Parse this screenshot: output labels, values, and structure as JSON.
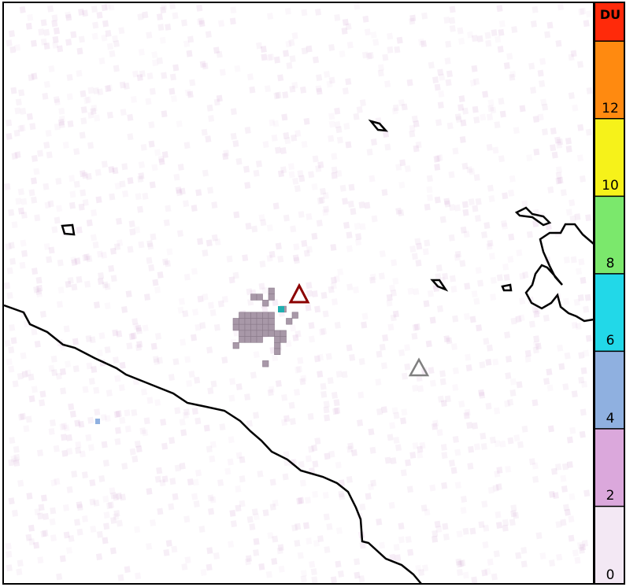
{
  "colorbar": {
    "unit": "DU",
    "tick_labels": [
      "0",
      "2",
      "4",
      "6",
      "8",
      "10",
      "12"
    ],
    "bins": [
      {
        "range": [
          0,
          2
        ],
        "color": "#f3e8f4"
      },
      {
        "range": [
          2,
          4
        ],
        "color": "#dba8dc"
      },
      {
        "range": [
          4,
          6
        ],
        "color": "#8fb0e0"
      },
      {
        "range": [
          6,
          8
        ],
        "color": "#22d8e8"
      },
      {
        "range": [
          8,
          10
        ],
        "color": "#7be86c"
      },
      {
        "range": [
          10,
          12
        ],
        "color": "#f6f21a"
      },
      {
        "range": [
          12,
          14
        ],
        "color": "#ff8a10"
      },
      {
        "range": [
          14,
          16
        ],
        "color": "#ff2a0a"
      }
    ]
  },
  "markers": [
    {
      "name": "primary-volcano",
      "symbol": "triangle",
      "color": "#8b0000"
    },
    {
      "name": "secondary-volcano",
      "symbol": "triangle",
      "color": "#808080"
    }
  ],
  "plume_color": "#a898a8",
  "hotspot_color": "#1fb0b0"
}
